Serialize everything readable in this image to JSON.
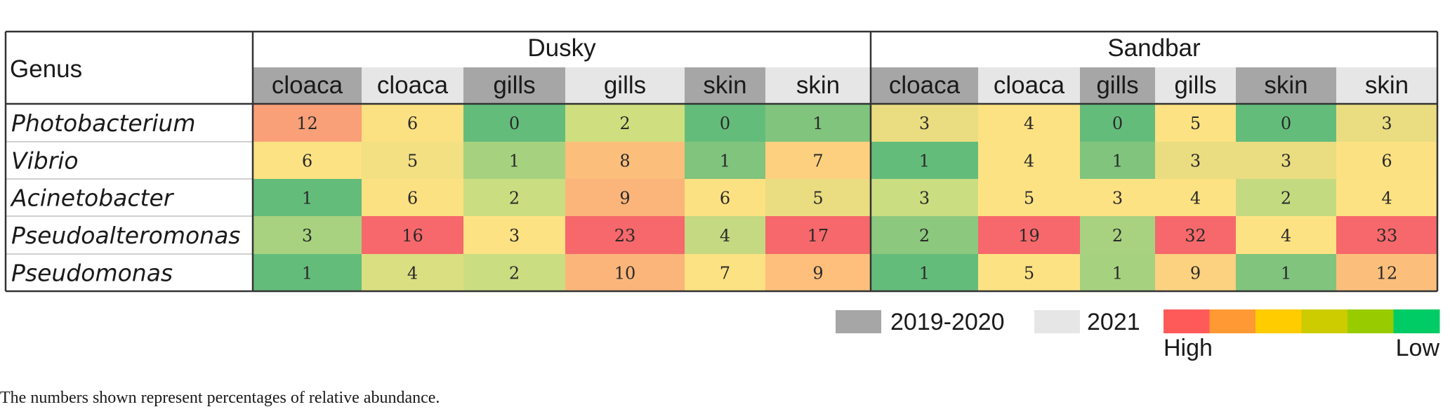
{
  "chart_data": {
    "type": "heatmap",
    "corner_label": "Genus",
    "groups": [
      "Dusky",
      "Sandbar"
    ],
    "columns": [
      {
        "group": "Dusky",
        "label": "cloaca",
        "period": "2019-2020"
      },
      {
        "group": "Dusky",
        "label": "cloaca",
        "period": "2021"
      },
      {
        "group": "Dusky",
        "label": "gills",
        "period": "2019-2020"
      },
      {
        "group": "Dusky",
        "label": "gills",
        "period": "2021"
      },
      {
        "group": "Dusky",
        "label": "skin",
        "period": "2019-2020"
      },
      {
        "group": "Dusky",
        "label": "skin",
        "period": "2021"
      },
      {
        "group": "Sandbar",
        "label": "cloaca",
        "period": "2019-2020"
      },
      {
        "group": "Sandbar",
        "label": "cloaca",
        "period": "2021"
      },
      {
        "group": "Sandbar",
        "label": "gills",
        "period": "2019-2020"
      },
      {
        "group": "Sandbar",
        "label": "gills",
        "period": "2021"
      },
      {
        "group": "Sandbar",
        "label": "skin",
        "period": "2019-2020"
      },
      {
        "group": "Sandbar",
        "label": "skin",
        "period": "2021"
      }
    ],
    "rows": [
      "Photobacterium",
      "Vibrio",
      "Acinetobacter",
      "Pseudoalteromonas",
      "Pseudomonas"
    ],
    "values": [
      [
        12,
        6,
        0,
        2,
        0,
        1,
        3,
        4,
        0,
        5,
        0,
        3
      ],
      [
        6,
        5,
        1,
        8,
        1,
        7,
        1,
        4,
        1,
        3,
        3,
        6
      ],
      [
        1,
        6,
        2,
        9,
        6,
        5,
        3,
        5,
        3,
        4,
        2,
        4
      ],
      [
        3,
        16,
        3,
        23,
        4,
        17,
        2,
        19,
        2,
        32,
        4,
        33
      ],
      [
        1,
        4,
        2,
        10,
        7,
        9,
        1,
        5,
        1,
        9,
        1,
        12
      ]
    ],
    "cell_colors": [
      [
        "#f9a078",
        "#fce182",
        "#64bc7b",
        "#cfdf7f",
        "#64bc7b",
        "#80c47d",
        "#eadd81",
        "#fde283",
        "#64bc7b",
        "#fde283",
        "#64bc7b",
        "#eadd81"
      ],
      [
        "#fde283",
        "#f2e082",
        "#a6d27f",
        "#fbbe7b",
        "#80c47d",
        "#fdd07f",
        "#64bc7b",
        "#fde283",
        "#80c47d",
        "#eadd81",
        "#eadd81",
        "#fce182"
      ],
      [
        "#64bc7b",
        "#fce182",
        "#cbdd81",
        "#fbb57a",
        "#fce182",
        "#eadd81",
        "#cbdd81",
        "#fde283",
        "#fde283",
        "#fde283",
        "#c4da81",
        "#fde283"
      ],
      [
        "#a8d280",
        "#f6686b",
        "#fde283",
        "#f6686b",
        "#c4d981",
        "#f6686b",
        "#8cc87e",
        "#f6686b",
        "#a8d280",
        "#f6686b",
        "#fde283",
        "#f6686b"
      ],
      [
        "#64bc7b",
        "#dadf81",
        "#cbdd81",
        "#fbb57a",
        "#fde283",
        "#fdbf7b",
        "#64bc7b",
        "#fde283",
        "#a6d27f",
        "#fcd17f",
        "#80c47d",
        "#fcbf7b"
      ]
    ],
    "header_colors": {
      "2019-2020": "#a6a6a6",
      "2021": "#e6e6e6"
    },
    "legend": {
      "periods": [
        {
          "label": "2019-2020",
          "color": "#a6a6a6"
        },
        {
          "label": "2021",
          "color": "#e6e6e6"
        }
      ],
      "scale_colors": [
        "#ff5a5a",
        "#ff9933",
        "#ffcc00",
        "#cccc00",
        "#99cc00",
        "#00cc66"
      ],
      "high_label": "High",
      "low_label": "Low"
    }
  },
  "footnote": "The numbers shown represent percentages of relative abundance."
}
